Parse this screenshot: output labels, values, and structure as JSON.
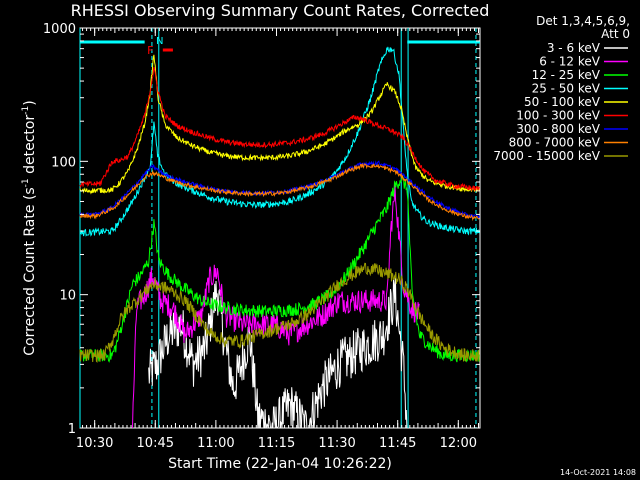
{
  "chart_data": {
    "type": "line",
    "title": "RHESSI Observing Summary Count Rates, Corrected",
    "xlabel": "Start Time (22-Jan-04 10:26:22)",
    "ylabel_main": "Corrected Count Rate (s",
    "ylabel_sup1": "-1",
    "ylabel_mid": " detector",
    "ylabel_sup2": "-1",
    "ylabel_end": ")",
    "yscale": "log",
    "xlim_minutes": [
      0,
      99
    ],
    "ylim": [
      1,
      1000
    ],
    "y_ticks": [
      {
        "v": 1,
        "label": "1"
      },
      {
        "v": 10,
        "label": "10"
      },
      {
        "v": 100,
        "label": "100"
      },
      {
        "v": 1000,
        "label": "1000"
      }
    ],
    "x_ticks": [
      {
        "m": 3.63,
        "label": "10:30"
      },
      {
        "m": 18.63,
        "label": "10:45"
      },
      {
        "m": 33.63,
        "label": "11:00"
      },
      {
        "m": 48.63,
        "label": "11:15"
      },
      {
        "m": 63.63,
        "label": "11:30"
      },
      {
        "m": 78.63,
        "label": "11:45"
      },
      {
        "m": 93.63,
        "label": "12:00"
      }
    ],
    "legend_header": "Det 1,3,4,5,6,9,",
    "legend_header2": "Att 0",
    "legend_placement": "right",
    "series": [
      {
        "name": "3 - 6 keV",
        "color": "#ffffff",
        "points": [
          [
            17,
            2.5
          ],
          [
            19,
            3
          ],
          [
            22,
            5
          ],
          [
            25,
            6
          ],
          [
            28,
            3
          ],
          [
            31,
            4
          ],
          [
            33,
            8
          ],
          [
            34,
            11
          ],
          [
            36,
            4
          ],
          [
            38,
            2
          ],
          [
            40,
            3
          ],
          [
            42,
            5
          ],
          [
            44,
            1.2
          ],
          [
            48,
            1
          ],
          [
            52,
            1.5
          ],
          [
            56,
            1
          ],
          [
            60,
            2
          ],
          [
            64,
            3
          ],
          [
            70,
            4
          ],
          [
            75,
            5
          ],
          [
            78,
            10
          ],
          [
            80,
            3
          ],
          [
            81,
            1
          ]
        ]
      },
      {
        "name": "6 - 12 keV",
        "color": "#ff00ff",
        "points": [
          [
            13,
            1
          ],
          [
            14,
            8
          ],
          [
            16,
            10
          ],
          [
            18,
            14
          ],
          [
            20,
            9
          ],
          [
            23,
            8
          ],
          [
            26,
            5
          ],
          [
            30,
            7
          ],
          [
            32,
            13
          ],
          [
            34,
            15
          ],
          [
            36,
            7
          ],
          [
            40,
            6
          ],
          [
            44,
            6
          ],
          [
            48,
            6
          ],
          [
            52,
            5
          ],
          [
            56,
            6
          ],
          [
            60,
            7
          ],
          [
            64,
            9
          ],
          [
            68,
            9
          ],
          [
            72,
            9
          ],
          [
            76,
            9
          ],
          [
            77,
            32
          ],
          [
            78,
            60
          ],
          [
            80,
            12
          ],
          [
            82,
            8
          ],
          [
            84,
            7
          ]
        ]
      },
      {
        "name": "12 - 25 keV",
        "color": "#00ff00",
        "points": [
          [
            0,
            3.5
          ],
          [
            8,
            3.5
          ],
          [
            9,
            4.2
          ],
          [
            11,
            7
          ],
          [
            13,
            12
          ],
          [
            15,
            14
          ],
          [
            17,
            18
          ],
          [
            18.3,
            34
          ],
          [
            19.5,
            18
          ],
          [
            22,
            14
          ],
          [
            26,
            11
          ],
          [
            30,
            9
          ],
          [
            34,
            8.2
          ],
          [
            38,
            7.8
          ],
          [
            42,
            7.6
          ],
          [
            46,
            7.5
          ],
          [
            50,
            7.6
          ],
          [
            54,
            7.8
          ],
          [
            58,
            8.5
          ],
          [
            62,
            10
          ],
          [
            66,
            14
          ],
          [
            70,
            22
          ],
          [
            73,
            32
          ],
          [
            76,
            45
          ],
          [
            78,
            65
          ],
          [
            79.5,
            75
          ],
          [
            81,
            62
          ],
          [
            82.2,
            10
          ],
          [
            84,
            5
          ],
          [
            87,
            4
          ],
          [
            90,
            3.5
          ],
          [
            99,
            3.5
          ]
        ]
      },
      {
        "name": "25 - 50 keV",
        "color": "#00ffff",
        "points": [
          [
            0,
            29
          ],
          [
            8,
            30
          ],
          [
            10,
            36
          ],
          [
            13,
            50
          ],
          [
            16,
            75
          ],
          [
            17.5,
            95
          ],
          [
            18.3,
            195
          ],
          [
            19.2,
            110
          ],
          [
            21,
            80
          ],
          [
            24,
            68
          ],
          [
            28,
            60
          ],
          [
            32,
            54
          ],
          [
            36,
            50
          ],
          [
            40,
            48
          ],
          [
            44,
            47
          ],
          [
            48,
            48
          ],
          [
            52,
            50
          ],
          [
            56,
            56
          ],
          [
            60,
            66
          ],
          [
            63,
            80
          ],
          [
            66,
            110
          ],
          [
            69,
            170
          ],
          [
            72,
            300
          ],
          [
            74,
            500
          ],
          [
            76,
            700
          ],
          [
            77.5,
            690
          ],
          [
            79,
            440
          ],
          [
            80,
            180
          ],
          [
            81,
            80
          ],
          [
            82,
            50
          ],
          [
            84,
            40
          ],
          [
            86,
            35
          ],
          [
            90,
            32
          ],
          [
            95,
            30
          ],
          [
            99,
            30
          ]
        ]
      },
      {
        "name": "50 - 100 keV",
        "color": "#ffff00",
        "points": [
          [
            0,
            60
          ],
          [
            8,
            61
          ],
          [
            10,
            70
          ],
          [
            12,
            85
          ],
          [
            14,
            120
          ],
          [
            16,
            190
          ],
          [
            17.3,
            320
          ],
          [
            18.3,
            640
          ],
          [
            19.3,
            300
          ],
          [
            21,
            190
          ],
          [
            24,
            150
          ],
          [
            28,
            130
          ],
          [
            32,
            117
          ],
          [
            36,
            110
          ],
          [
            40,
            107
          ],
          [
            44,
            106
          ],
          [
            48,
            107
          ],
          [
            52,
            110
          ],
          [
            56,
            118
          ],
          [
            60,
            132
          ],
          [
            63,
            150
          ],
          [
            66,
            172
          ],
          [
            69,
            190
          ],
          [
            72,
            230
          ],
          [
            74,
            300
          ],
          [
            76,
            380
          ],
          [
            78,
            330
          ],
          [
            79.5,
            250
          ],
          [
            81,
            150
          ],
          [
            83,
            90
          ],
          [
            86,
            72
          ],
          [
            90,
            66
          ],
          [
            95,
            62
          ],
          [
            99,
            62
          ]
        ]
      },
      {
        "name": "100 - 300 keV",
        "color": "#ff0000",
        "points": [
          [
            0,
            67
          ],
          [
            5,
            68
          ],
          [
            8,
            100
          ],
          [
            10,
            102
          ],
          [
            12,
            110
          ],
          [
            14,
            150
          ],
          [
            16,
            220
          ],
          [
            17.3,
            330
          ],
          [
            18.3,
            500
          ],
          [
            19.3,
            340
          ],
          [
            21,
            220
          ],
          [
            24,
            185
          ],
          [
            28,
            165
          ],
          [
            32,
            150
          ],
          [
            36,
            140
          ],
          [
            40,
            135
          ],
          [
            44,
            133
          ],
          [
            48,
            134
          ],
          [
            52,
            138
          ],
          [
            56,
            146
          ],
          [
            60,
            160
          ],
          [
            63,
            178
          ],
          [
            66,
            200
          ],
          [
            68,
            215
          ],
          [
            70,
            208
          ],
          [
            72,
            195
          ],
          [
            74,
            185
          ],
          [
            76,
            175
          ],
          [
            78,
            165
          ],
          [
            80,
            150
          ],
          [
            82,
            120
          ],
          [
            85,
            85
          ],
          [
            88,
            72
          ],
          [
            92,
            66
          ],
          [
            99,
            62
          ]
        ]
      },
      {
        "name": "300 - 800 keV",
        "color": "#0000ff",
        "points": [
          [
            0,
            40
          ],
          [
            4,
            40
          ],
          [
            8,
            45
          ],
          [
            11,
            55
          ],
          [
            14,
            68
          ],
          [
            16,
            80
          ],
          [
            18,
            92
          ],
          [
            20,
            83
          ],
          [
            22,
            77
          ],
          [
            26,
            70
          ],
          [
            30,
            65
          ],
          [
            34,
            61
          ],
          [
            38,
            59
          ],
          [
            42,
            58
          ],
          [
            46,
            58
          ],
          [
            50,
            59
          ],
          [
            54,
            62
          ],
          [
            58,
            67
          ],
          [
            62,
            75
          ],
          [
            66,
            86
          ],
          [
            70,
            96
          ],
          [
            74,
            97
          ],
          [
            78,
            88
          ],
          [
            82,
            70
          ],
          [
            86,
            55
          ],
          [
            90,
            46
          ],
          [
            95,
            40
          ],
          [
            99,
            38
          ]
        ]
      },
      {
        "name": "800 - 7000 keV",
        "color": "#ff8000",
        "points": [
          [
            0,
            39
          ],
          [
            4,
            39
          ],
          [
            8,
            44
          ],
          [
            11,
            53
          ],
          [
            14,
            65
          ],
          [
            16,
            76
          ],
          [
            18,
            82
          ],
          [
            20,
            78
          ],
          [
            22,
            73
          ],
          [
            26,
            67
          ],
          [
            30,
            63
          ],
          [
            34,
            60
          ],
          [
            38,
            58
          ],
          [
            42,
            57
          ],
          [
            46,
            57
          ],
          [
            50,
            58
          ],
          [
            54,
            61
          ],
          [
            58,
            66
          ],
          [
            62,
            73
          ],
          [
            66,
            84
          ],
          [
            70,
            93
          ],
          [
            74,
            92
          ],
          [
            78,
            84
          ],
          [
            82,
            67
          ],
          [
            86,
            52
          ],
          [
            90,
            44
          ],
          [
            95,
            39
          ],
          [
            99,
            37
          ]
        ]
      },
      {
        "name": "7000 - 15000 keV",
        "color": "#999900",
        "points": [
          [
            0,
            3.5
          ],
          [
            6,
            3.5
          ],
          [
            8,
            4.5
          ],
          [
            10,
            6.5
          ],
          [
            12,
            8
          ],
          [
            14,
            9
          ],
          [
            16,
            10.5
          ],
          [
            18,
            12
          ],
          [
            20,
            11.5
          ],
          [
            22,
            11
          ],
          [
            24,
            10
          ],
          [
            26,
            9
          ],
          [
            28,
            7.5
          ],
          [
            30,
            6.2
          ],
          [
            32,
            5.2
          ],
          [
            36,
            4.5
          ],
          [
            40,
            4.5
          ],
          [
            44,
            5
          ],
          [
            48,
            5.5
          ],
          [
            52,
            6
          ],
          [
            56,
            7
          ],
          [
            60,
            9
          ],
          [
            64,
            12
          ],
          [
            68,
            14.5
          ],
          [
            71,
            16
          ],
          [
            74,
            15
          ],
          [
            77,
            14
          ],
          [
            79,
            13
          ],
          [
            81,
            11
          ],
          [
            84,
            7
          ],
          [
            87,
            5
          ],
          [
            90,
            4
          ],
          [
            95,
            3.5
          ],
          [
            99,
            3.5
          ]
        ]
      }
    ],
    "annotations": {
      "flag_F": "F",
      "flag_N": "N",
      "saa_bar_color": "#00ffff",
      "flare_marker_color": "#ff0000",
      "vlines_minutes": [
        0,
        17.8,
        19.5,
        79.5,
        81.2,
        98
      ]
    }
  },
  "footer": {
    "timestamp": "14-Oct-2021 14:08"
  }
}
